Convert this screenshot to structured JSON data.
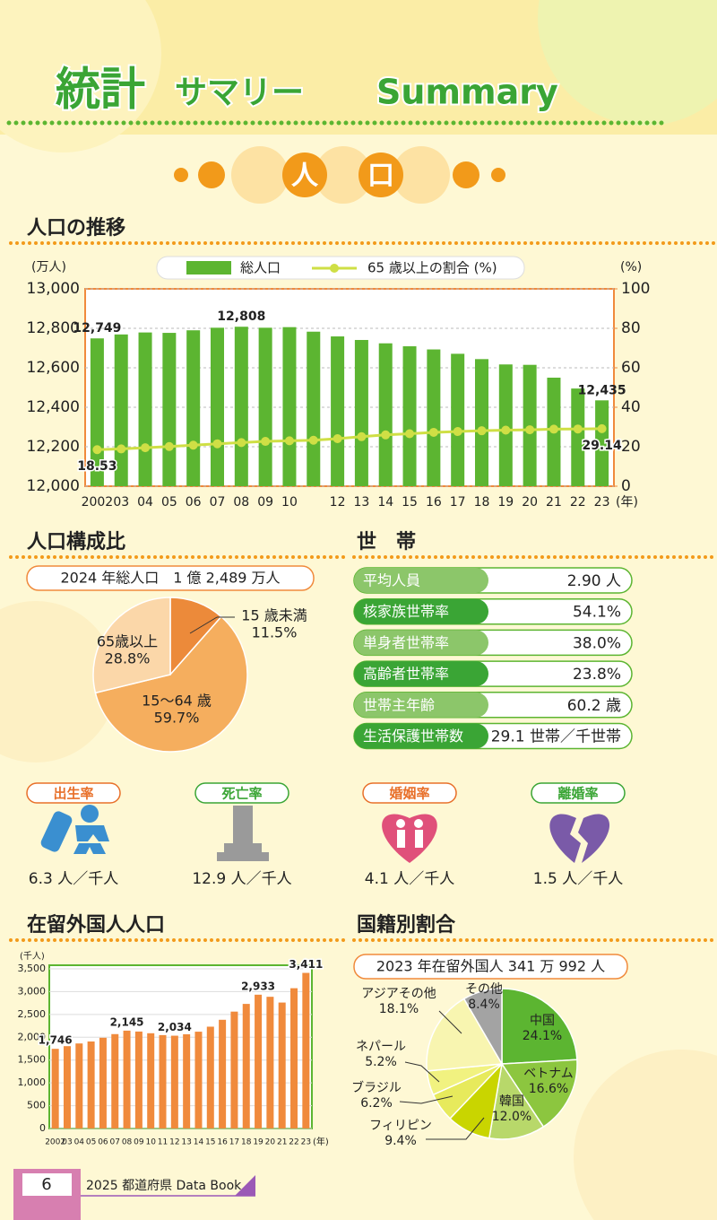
{
  "header": {
    "title": "統計",
    "subtitle": "サマリー",
    "english": "Summary"
  },
  "section": {
    "chars": [
      "人",
      "口"
    ]
  },
  "chart_data": [
    {
      "type": "bar",
      "title": "人口の推移",
      "y_label": "(万人)",
      "y2_label": "(%)",
      "x_unit": "(年)",
      "categories": [
        "2002",
        "03",
        "04",
        "05",
        "06",
        "07",
        "08",
        "09",
        "10",
        null,
        "12",
        "13",
        "14",
        "15",
        "16",
        "17",
        "18",
        "19",
        "20",
        "21",
        "22",
        "23"
      ],
      "series": [
        {
          "name": "総人口",
          "color": "#5cb531",
          "values": [
            12749,
            12769,
            12779,
            12777,
            12790,
            12803,
            12808,
            12803,
            12806,
            12783,
            12759,
            12741,
            12724,
            12709,
            12693,
            12671,
            12644,
            12617,
            12615,
            12550,
            12495,
            12435
          ],
          "value_labels": [
            "12,749",
            null,
            null,
            null,
            null,
            null,
            "12,808",
            null,
            null,
            null,
            null,
            null,
            null,
            null,
            null,
            null,
            null,
            null,
            null,
            null,
            null,
            "12,435"
          ]
        },
        {
          "name": "65 歳以上の割合 (%)",
          "type": "line",
          "axis": "y2",
          "color": "#cfdf45",
          "values": [
            18.53,
            18.9,
            19.5,
            20.1,
            20.8,
            21.5,
            22.1,
            22.7,
            23.0,
            23.3,
            24.1,
            25.1,
            26.0,
            26.6,
            27.3,
            27.7,
            28.1,
            28.4,
            28.6,
            28.9,
            29.0,
            29.14
          ],
          "value_labels": [
            "18.53",
            null,
            null,
            null,
            null,
            null,
            null,
            null,
            null,
            null,
            null,
            null,
            null,
            null,
            null,
            null,
            null,
            null,
            null,
            null,
            null,
            "29.14"
          ]
        }
      ],
      "ylim": [
        12000,
        13000
      ],
      "yticks": [
        {
          "value": 12000,
          "label": "12,000"
        },
        {
          "value": 12200,
          "label": "12,200"
        },
        {
          "value": 12400,
          "label": "12,400"
        },
        {
          "value": 12600,
          "label": "12,600"
        },
        {
          "value": 12800,
          "label": "12,800"
        },
        {
          "value": 13000,
          "label": "13,000"
        }
      ],
      "y2lim": [
        0,
        100
      ],
      "y2ticks": [
        0,
        20,
        40,
        60,
        80,
        100
      ],
      "grid": true
    },
    {
      "type": "pie",
      "title": "人口構成比",
      "subtitle": "2024 年総人口　1 億 2,489 万人",
      "categories": [
        "15 歳未満",
        "15～64 歳",
        "65歳以上"
      ],
      "values": [
        11.5,
        59.7,
        28.8
      ],
      "value_labels": [
        "11.5%",
        "59.7%",
        "28.8%"
      ],
      "colors": [
        "#ec8a3a",
        "#f5ae5e",
        "#fbd7a9"
      ]
    },
    {
      "type": "bar",
      "title": "在留外国人人口",
      "y_label": "(千人)",
      "x_unit": "(年)",
      "categories": [
        "2002",
        "03",
        "04",
        "05",
        "06",
        "07",
        "08",
        "09",
        "10",
        "11",
        "12",
        "13",
        "14",
        "15",
        "16",
        "17",
        "18",
        "19",
        "20",
        "21",
        "22",
        "23"
      ],
      "values": [
        1746,
        1805,
        1864,
        1907,
        1989,
        2069,
        2145,
        2125,
        2088,
        2047,
        2034,
        2066,
        2122,
        2232,
        2383,
        2562,
        2731,
        2933,
        2887,
        2761,
        3075,
        3411
      ],
      "value_labels": [
        "1,746",
        null,
        null,
        null,
        null,
        null,
        "2,145",
        null,
        null,
        null,
        "2,034",
        null,
        null,
        null,
        null,
        null,
        null,
        "2,933",
        null,
        null,
        null,
        "3,411"
      ],
      "color": "#f08a3c",
      "ylim": [
        0,
        3500
      ],
      "yticks": [
        0,
        500,
        {
          "value": 1000,
          "label": "1,000"
        },
        {
          "value": 1500,
          "label": "1,500"
        },
        {
          "value": 2000,
          "label": "2,000"
        },
        {
          "value": 2500,
          "label": "2,500"
        },
        {
          "value": 3000,
          "label": "3,000"
        },
        {
          "value": 3500,
          "label": "3,500"
        }
      ],
      "grid": true
    },
    {
      "type": "pie",
      "title": "国籍別割合",
      "subtitle": "2023 年在留外国人 341 万 992 人",
      "categories": [
        "中国",
        "ベトナム",
        "韓国",
        "フィリピン",
        "ブラジル",
        "ネパール",
        "アジアその他",
        "その他"
      ],
      "values": [
        24.1,
        16.6,
        12.0,
        9.4,
        6.2,
        5.2,
        18.1,
        8.4
      ],
      "value_labels": [
        "24.1%",
        "16.6%",
        "12.0%",
        "9.4%",
        "6.2%",
        "5.2%",
        "18.1%",
        "8.4%"
      ],
      "colors": [
        "#5cb531",
        "#8cc63f",
        "#b8d86a",
        "#c9d500",
        "#e7ea5c",
        "#f1f280",
        "#f8f5b0",
        "#a3a3a3"
      ]
    }
  ],
  "households": {
    "title": "世　帯",
    "rows": [
      [
        "平均人員",
        "2.90 人"
      ],
      [
        "核家族世帯率",
        "54.1%"
      ],
      [
        "単身者世帯率",
        "38.0%"
      ],
      [
        "高齢者世帯率",
        "23.8%"
      ],
      [
        "世帯主年齢",
        "60.2 歳"
      ],
      [
        "生活保護世帯数",
        "29.1 世帯／千世帯"
      ]
    ]
  },
  "rates": [
    {
      "label": "出生率",
      "value": "6.3 人／千人"
    },
    {
      "label": "死亡率",
      "value": "12.9 人／千人"
    },
    {
      "label": "婚姻率",
      "value": "4.1 人／千人"
    },
    {
      "label": "離婚率",
      "value": "1.5 人／千人"
    }
  ],
  "footer": {
    "page": "6",
    "book": "2025 都道府県 Data Book"
  }
}
